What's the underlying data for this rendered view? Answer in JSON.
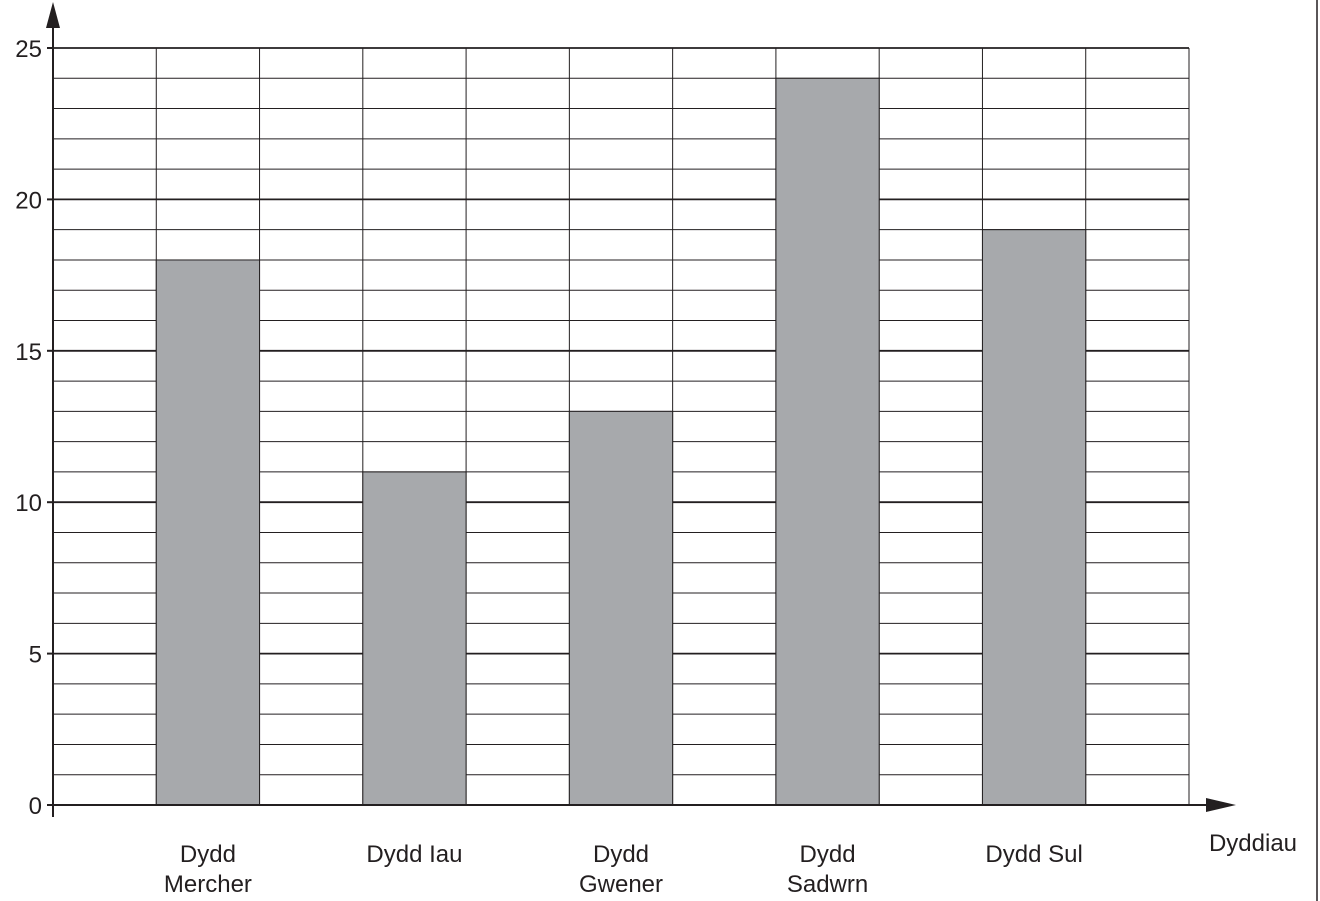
{
  "chart_data": {
    "type": "bar",
    "categories": [
      "Dydd Mercher",
      "Dydd Iau",
      "Dydd Gwener",
      "Dydd Sadwrn",
      "Dydd Sul"
    ],
    "category_label_lines": [
      [
        "Dydd",
        "Mercher"
      ],
      [
        "Dydd Iau"
      ],
      [
        "Dydd",
        "Gwener"
      ],
      [
        "Dydd",
        "Sadwrn"
      ],
      [
        "Dydd Sul"
      ]
    ],
    "values": [
      18,
      11,
      13,
      24,
      19
    ],
    "title": "",
    "xlabel": "Dyddiau",
    "ylabel": "",
    "ylim": [
      0,
      25
    ],
    "yticks": [
      "0",
      "5",
      "10",
      "15",
      "20",
      "25"
    ],
    "grid": true,
    "legend": "none",
    "colors": {
      "bar": "#a7a9ac",
      "bar_outline": "#231f20",
      "grid": "#231f20",
      "axis": "#231f20",
      "text": "#231f20"
    }
  }
}
